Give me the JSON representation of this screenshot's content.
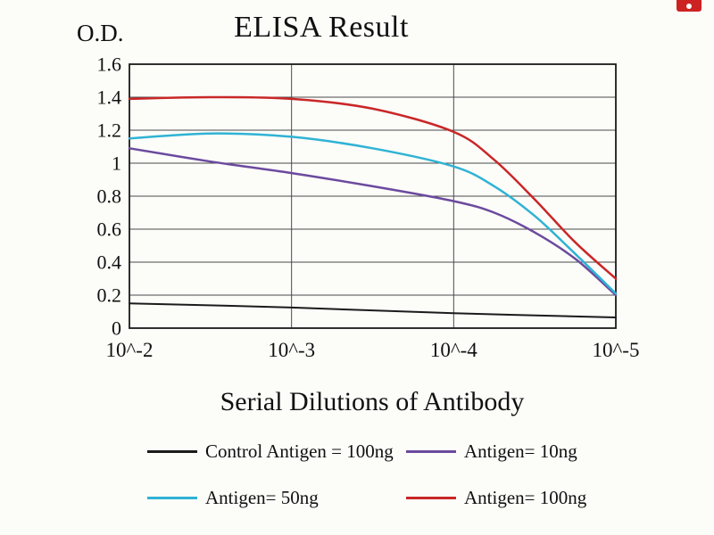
{
  "figure": {
    "background": "#fcfcf9",
    "grid_color": "#4a4a4a",
    "border_color": "#1a1a1a",
    "text_color": "#111111"
  },
  "chart_data": {
    "type": "line",
    "title": "ELISA Result",
    "ylabel": "O.D.",
    "xlabel": "Serial Dilutions of Antibody",
    "grid": true,
    "legend_position": "bottom",
    "xlim": [
      -2,
      -5
    ],
    "ylim": [
      0,
      1.6
    ],
    "x_ticks": [
      "10^-2",
      "10^-3",
      "10^-4",
      "10^-5"
    ],
    "x_tick_values": [
      -2,
      -3,
      -4,
      -5
    ],
    "y_ticks": [
      "1.6",
      "1.4",
      "1.2",
      "1",
      "0.8",
      "0.6",
      "0.4",
      "0.2",
      "0"
    ],
    "y_tick_values": [
      1.6,
      1.4,
      1.2,
      1.0,
      0.8,
      0.6,
      0.4,
      0.2,
      0
    ],
    "series": [
      {
        "name": "Control Antigen = 100ng",
        "color": "#1b1b1b",
        "width": 2,
        "points": [
          [
            -2,
            0.15
          ],
          [
            -3,
            0.125
          ],
          [
            -4,
            0.09
          ],
          [
            -5,
            0.065
          ]
        ]
      },
      {
        "name": "Antigen= 10ng",
        "color": "#6b4a9e",
        "width": 2.5,
        "points": [
          [
            -2,
            1.09
          ],
          [
            -2.5,
            1.01
          ],
          [
            -3,
            0.94
          ],
          [
            -3.5,
            0.86
          ],
          [
            -4,
            0.77
          ],
          [
            -4.25,
            0.7
          ],
          [
            -4.5,
            0.58
          ],
          [
            -4.75,
            0.42
          ],
          [
            -5,
            0.2
          ]
        ]
      },
      {
        "name": "Antigen= 50ng",
        "color": "#2fb3d4",
        "width": 2.5,
        "points": [
          [
            -2,
            1.15
          ],
          [
            -2.5,
            1.18
          ],
          [
            -3,
            1.16
          ],
          [
            -3.5,
            1.09
          ],
          [
            -4,
            0.98
          ],
          [
            -4.25,
            0.86
          ],
          [
            -4.5,
            0.68
          ],
          [
            -4.75,
            0.45
          ],
          [
            -5,
            0.21
          ]
        ]
      },
      {
        "name": "Antigen= 100ng",
        "color": "#c92727",
        "width": 2.5,
        "points": [
          [
            -2,
            1.39
          ],
          [
            -2.5,
            1.4
          ],
          [
            -3,
            1.39
          ],
          [
            -3.5,
            1.33
          ],
          [
            -4,
            1.19
          ],
          [
            -4.25,
            1.02
          ],
          [
            -4.5,
            0.78
          ],
          [
            -4.75,
            0.52
          ],
          [
            -5,
            0.3
          ]
        ]
      }
    ]
  }
}
